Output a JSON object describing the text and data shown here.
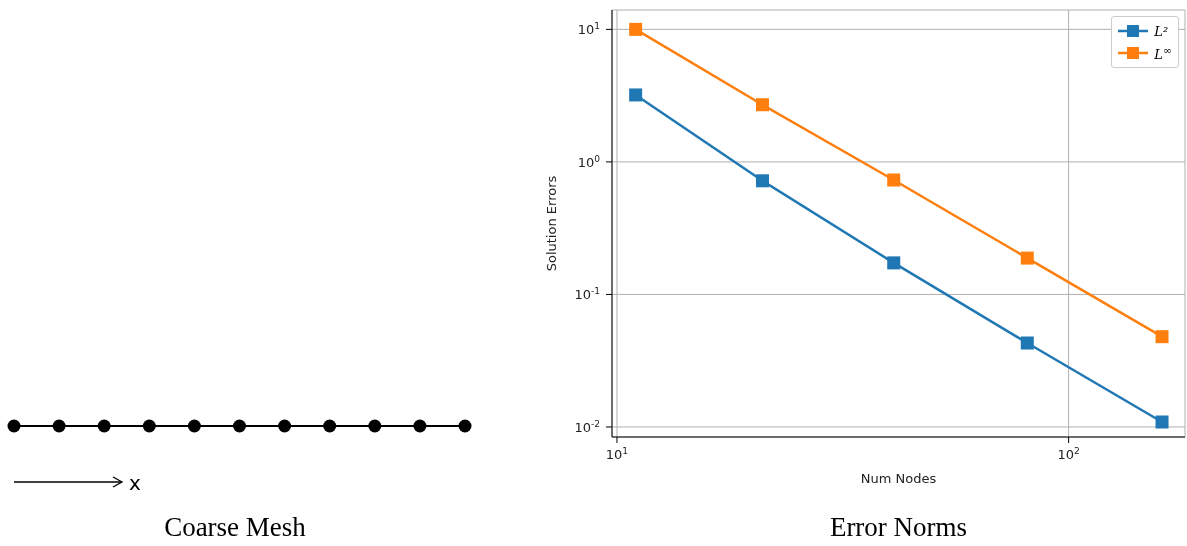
{
  "chart_data": [
    {
      "type": "other",
      "title": "Coarse Mesh",
      "annotations": [
        "x"
      ]
    },
    {
      "type": "line",
      "title": "Error Norms",
      "xlabel": "Num Nodes",
      "ylabel": "Solution Errors",
      "log": "xy",
      "x": [
        11,
        21,
        41,
        81,
        161
      ],
      "series": [
        {
          "name": "L²",
          "color": "#1f77b4",
          "values": [
            3.2,
            0.72,
            0.173,
            0.043,
            0.0109
          ]
        },
        {
          "name": "L$^{∞}$",
          "color": "#ff7f0e",
          "values": [
            10,
            2.7,
            0.73,
            0.188,
            0.048
          ]
        }
      ],
      "xlim": [
        9.75,
        181
      ],
      "ylim": [
        0.0084,
        14
      ],
      "xticks": [
        {
          "value": 10,
          "label": "10$^{1}$"
        },
        {
          "value": 100,
          "label": "10$^{2}$"
        }
      ],
      "yticks": [
        {
          "value": 0.01,
          "label": "10$^{-2}$"
        },
        {
          "value": 0.1,
          "label": "10$^{-1}$"
        },
        {
          "value": 1,
          "label": "10$^{0}$"
        },
        {
          "value": 10,
          "label": "10$^{1}$"
        }
      ],
      "grid": true,
      "legend": "top right",
      "marker": "square",
      "line_style": "solid"
    }
  ]
}
